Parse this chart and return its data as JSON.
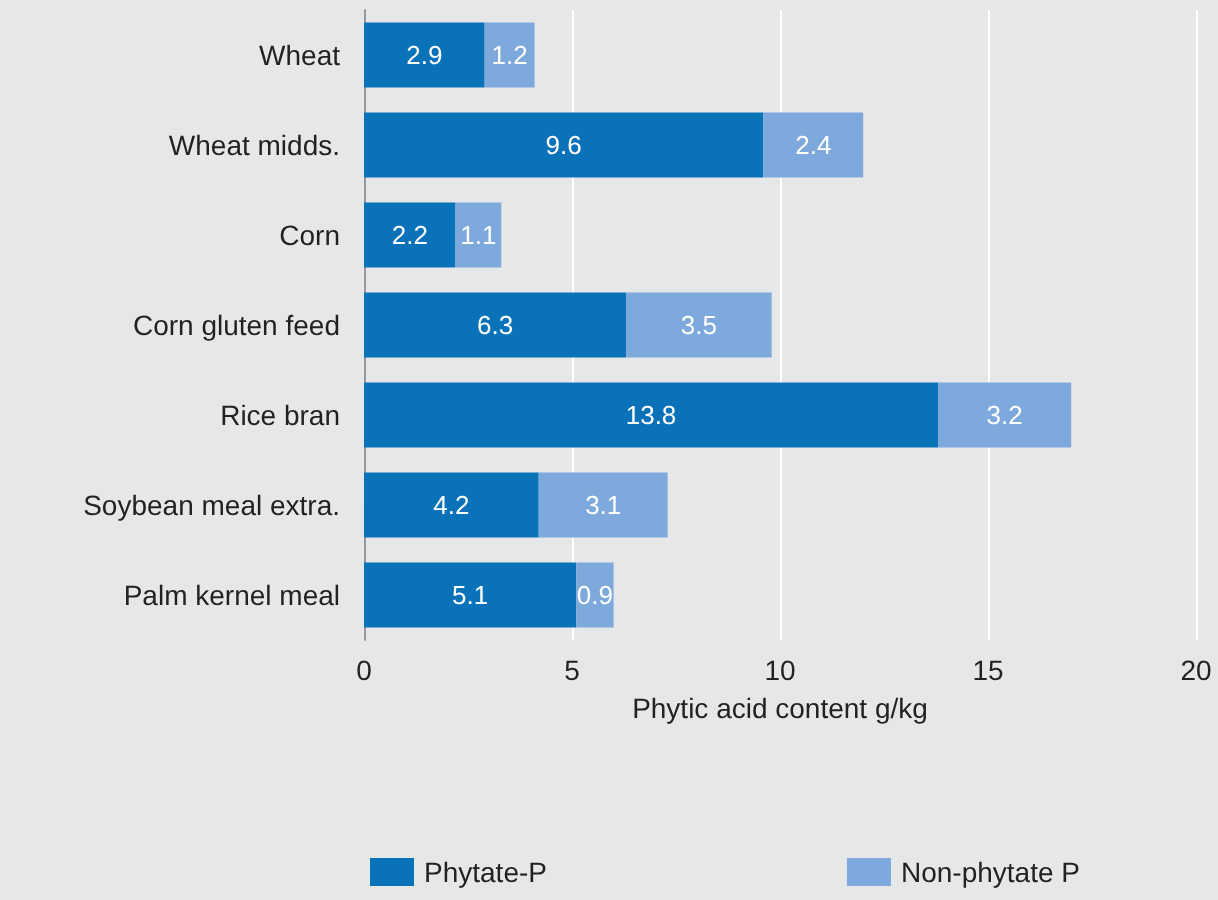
{
  "chart_data": {
    "type": "bar",
    "orientation": "horizontal",
    "stacked": true,
    "xlabel": "Phytic acid content g/kg",
    "categories": [
      "Wheat",
      "Wheat midds.",
      "Corn",
      "Corn gluten feed",
      "Rice bran",
      "Soybean meal extra.",
      "Palm kernel meal"
    ],
    "series": [
      {
        "name": "Phytate-P",
        "color": "#0a72b9",
        "values": [
          2.9,
          9.6,
          2.2,
          6.3,
          13.8,
          4.2,
          5.1
        ]
      },
      {
        "name": "Non-phytate P",
        "color": "#7ea9dc",
        "values": [
          1.2,
          2.4,
          1.1,
          3.5,
          3.2,
          3.1,
          0.9
        ]
      }
    ],
    "xlim": [
      0,
      20
    ],
    "xticks": [
      0,
      5,
      10,
      15,
      20
    ],
    "grid": "x",
    "legend": "bottom",
    "data_labels": true
  }
}
